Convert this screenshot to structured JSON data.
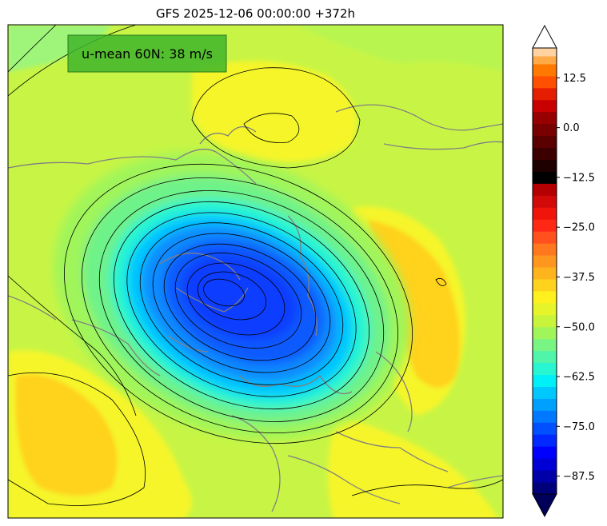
{
  "title": "GFS 2025-12-06 00:00:00 +372h",
  "badge": {
    "text": "u-mean 60N: 38 m/s",
    "color": "#3fb52a"
  },
  "colors": {
    "background_field": "#c8f545",
    "vortex_outer": "#6ef28a",
    "vortex_mid": "#1ee0f0",
    "vortex_inner": "#0a8cff",
    "vortex_core": "#0a46ff",
    "warm_anomaly": "#ffd21e",
    "yellow": "#f5f52a",
    "coastline": "#808080",
    "contour": "#000000"
  },
  "colorbar": {
    "ticks": [
      "12.5",
      "0.0",
      "−12.5",
      "−25.0",
      "−37.5",
      "−50.0",
      "−62.5",
      "−75.0",
      "−87.5"
    ],
    "tick_values": [
      12.5,
      0.0,
      -12.5,
      -25.0,
      -37.5,
      -50.0,
      -62.5,
      -75.0,
      -87.5
    ],
    "vmin": -92,
    "vmax": 20,
    "extend": "both",
    "levels": [
      {
        "lo": -92,
        "hi": -89,
        "color": "#00007a"
      },
      {
        "lo": -89,
        "hi": -86,
        "color": "#0000a8"
      },
      {
        "lo": -86,
        "hi": -83,
        "color": "#0000d6"
      },
      {
        "lo": -83,
        "hi": -80,
        "color": "#0000ff"
      },
      {
        "lo": -80,
        "hi": -77,
        "color": "#0028ff"
      },
      {
        "lo": -77,
        "hi": -74,
        "color": "#0050ff"
      },
      {
        "lo": -74,
        "hi": -71,
        "color": "#0078ff"
      },
      {
        "lo": -71,
        "hi": -68,
        "color": "#00a0ff"
      },
      {
        "lo": -68,
        "hi": -65,
        "color": "#00c8ff"
      },
      {
        "lo": -65,
        "hi": -62,
        "color": "#00f0f8"
      },
      {
        "lo": -62,
        "hi": -59,
        "color": "#28f5d2"
      },
      {
        "lo": -59,
        "hi": -56,
        "color": "#50f5aa"
      },
      {
        "lo": -56,
        "hi": -53,
        "color": "#78f582"
      },
      {
        "lo": -53,
        "hi": -50,
        "color": "#a0f55a"
      },
      {
        "lo": -50,
        "hi": -47,
        "color": "#c8f53c"
      },
      {
        "lo": -47,
        "hi": -44,
        "color": "#e6f52a"
      },
      {
        "lo": -44,
        "hi": -41,
        "color": "#fff01e"
      },
      {
        "lo": -41,
        "hi": -38,
        "color": "#ffd21e"
      },
      {
        "lo": -38,
        "hi": -35,
        "color": "#ffb41e"
      },
      {
        "lo": -35,
        "hi": -32,
        "color": "#ff961e"
      },
      {
        "lo": -32,
        "hi": -29,
        "color": "#ff781e"
      },
      {
        "lo": -29,
        "hi": -26,
        "color": "#ff501e"
      },
      {
        "lo": -26,
        "hi": -23,
        "color": "#ff2814"
      },
      {
        "lo": -23,
        "hi": -20,
        "color": "#f0140a"
      },
      {
        "lo": -20,
        "hi": -17,
        "color": "#d20a0a"
      },
      {
        "lo": -17,
        "hi": -14,
        "color": "#b40000"
      },
      {
        "lo": -14,
        "hi": -11,
        "color": "#000000"
      },
      {
        "lo": -11,
        "hi": -8,
        "color": "#1e0000"
      },
      {
        "lo": -8,
        "hi": -5,
        "color": "#3c0000"
      },
      {
        "lo": -5,
        "hi": -2,
        "color": "#5a0000"
      },
      {
        "lo": -2,
        "hi": 1,
        "color": "#780000"
      },
      {
        "lo": 1,
        "hi": 4,
        "color": "#960000"
      },
      {
        "lo": 4,
        "hi": 7,
        "color": "#c80000"
      },
      {
        "lo": 7,
        "hi": 10,
        "color": "#e61e00"
      },
      {
        "lo": 10,
        "hi": 13,
        "color": "#ff5000"
      },
      {
        "lo": 13,
        "hi": 16,
        "color": "#ff7800"
      },
      {
        "lo": 16,
        "hi": 18,
        "color": "#ffaa46"
      },
      {
        "lo": 18,
        "hi": 20,
        "color": "#ffd2a0"
      }
    ],
    "under_color": "#00005a",
    "over_color": "#ffffff"
  }
}
